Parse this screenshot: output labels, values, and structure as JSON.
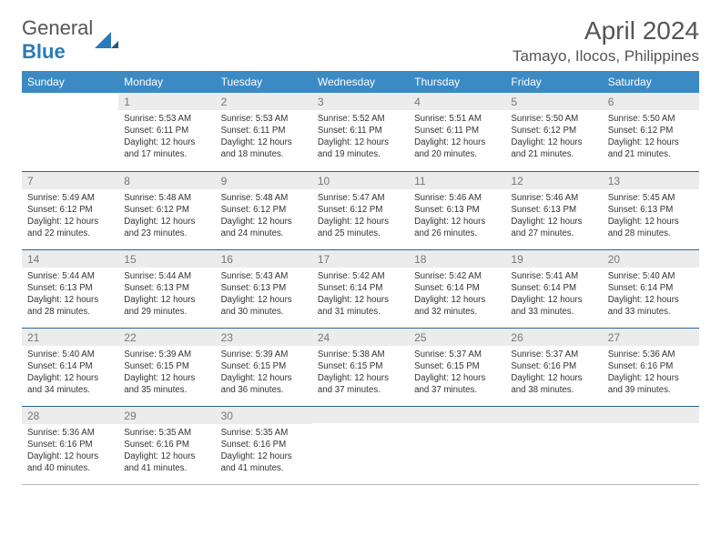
{
  "brand": {
    "text1": "General",
    "text2": "Blue",
    "logo_color": "#2a7ab9"
  },
  "title": "April 2024",
  "location": "Tamayo, Ilocos, Philippines",
  "calendar": {
    "header_bg": "#3b8ac4",
    "header_fg": "#ffffff",
    "daynum_bg": "#ececec",
    "daynum_fg": "#777777",
    "border_color": "#2a6496",
    "weekdays": [
      "Sunday",
      "Monday",
      "Tuesday",
      "Wednesday",
      "Thursday",
      "Friday",
      "Saturday"
    ],
    "first_weekday_index": 1,
    "days": [
      {
        "n": 1,
        "sunrise": "5:53 AM",
        "sunset": "6:11 PM",
        "daylight_h": 12,
        "daylight_m": 17
      },
      {
        "n": 2,
        "sunrise": "5:53 AM",
        "sunset": "6:11 PM",
        "daylight_h": 12,
        "daylight_m": 18
      },
      {
        "n": 3,
        "sunrise": "5:52 AM",
        "sunset": "6:11 PM",
        "daylight_h": 12,
        "daylight_m": 19
      },
      {
        "n": 4,
        "sunrise": "5:51 AM",
        "sunset": "6:11 PM",
        "daylight_h": 12,
        "daylight_m": 20
      },
      {
        "n": 5,
        "sunrise": "5:50 AM",
        "sunset": "6:12 PM",
        "daylight_h": 12,
        "daylight_m": 21
      },
      {
        "n": 6,
        "sunrise": "5:50 AM",
        "sunset": "6:12 PM",
        "daylight_h": 12,
        "daylight_m": 21
      },
      {
        "n": 7,
        "sunrise": "5:49 AM",
        "sunset": "6:12 PM",
        "daylight_h": 12,
        "daylight_m": 22
      },
      {
        "n": 8,
        "sunrise": "5:48 AM",
        "sunset": "6:12 PM",
        "daylight_h": 12,
        "daylight_m": 23
      },
      {
        "n": 9,
        "sunrise": "5:48 AM",
        "sunset": "6:12 PM",
        "daylight_h": 12,
        "daylight_m": 24
      },
      {
        "n": 10,
        "sunrise": "5:47 AM",
        "sunset": "6:12 PM",
        "daylight_h": 12,
        "daylight_m": 25
      },
      {
        "n": 11,
        "sunrise": "5:46 AM",
        "sunset": "6:13 PM",
        "daylight_h": 12,
        "daylight_m": 26
      },
      {
        "n": 12,
        "sunrise": "5:46 AM",
        "sunset": "6:13 PM",
        "daylight_h": 12,
        "daylight_m": 27
      },
      {
        "n": 13,
        "sunrise": "5:45 AM",
        "sunset": "6:13 PM",
        "daylight_h": 12,
        "daylight_m": 28
      },
      {
        "n": 14,
        "sunrise": "5:44 AM",
        "sunset": "6:13 PM",
        "daylight_h": 12,
        "daylight_m": 28
      },
      {
        "n": 15,
        "sunrise": "5:44 AM",
        "sunset": "6:13 PM",
        "daylight_h": 12,
        "daylight_m": 29
      },
      {
        "n": 16,
        "sunrise": "5:43 AM",
        "sunset": "6:13 PM",
        "daylight_h": 12,
        "daylight_m": 30
      },
      {
        "n": 17,
        "sunrise": "5:42 AM",
        "sunset": "6:14 PM",
        "daylight_h": 12,
        "daylight_m": 31
      },
      {
        "n": 18,
        "sunrise": "5:42 AM",
        "sunset": "6:14 PM",
        "daylight_h": 12,
        "daylight_m": 32
      },
      {
        "n": 19,
        "sunrise": "5:41 AM",
        "sunset": "6:14 PM",
        "daylight_h": 12,
        "daylight_m": 33
      },
      {
        "n": 20,
        "sunrise": "5:40 AM",
        "sunset": "6:14 PM",
        "daylight_h": 12,
        "daylight_m": 33
      },
      {
        "n": 21,
        "sunrise": "5:40 AM",
        "sunset": "6:14 PM",
        "daylight_h": 12,
        "daylight_m": 34
      },
      {
        "n": 22,
        "sunrise": "5:39 AM",
        "sunset": "6:15 PM",
        "daylight_h": 12,
        "daylight_m": 35
      },
      {
        "n": 23,
        "sunrise": "5:39 AM",
        "sunset": "6:15 PM",
        "daylight_h": 12,
        "daylight_m": 36
      },
      {
        "n": 24,
        "sunrise": "5:38 AM",
        "sunset": "6:15 PM",
        "daylight_h": 12,
        "daylight_m": 37
      },
      {
        "n": 25,
        "sunrise": "5:37 AM",
        "sunset": "6:15 PM",
        "daylight_h": 12,
        "daylight_m": 37
      },
      {
        "n": 26,
        "sunrise": "5:37 AM",
        "sunset": "6:16 PM",
        "daylight_h": 12,
        "daylight_m": 38
      },
      {
        "n": 27,
        "sunrise": "5:36 AM",
        "sunset": "6:16 PM",
        "daylight_h": 12,
        "daylight_m": 39
      },
      {
        "n": 28,
        "sunrise": "5:36 AM",
        "sunset": "6:16 PM",
        "daylight_h": 12,
        "daylight_m": 40
      },
      {
        "n": 29,
        "sunrise": "5:35 AM",
        "sunset": "6:16 PM",
        "daylight_h": 12,
        "daylight_m": 41
      },
      {
        "n": 30,
        "sunrise": "5:35 AM",
        "sunset": "6:16 PM",
        "daylight_h": 12,
        "daylight_m": 41
      }
    ]
  }
}
